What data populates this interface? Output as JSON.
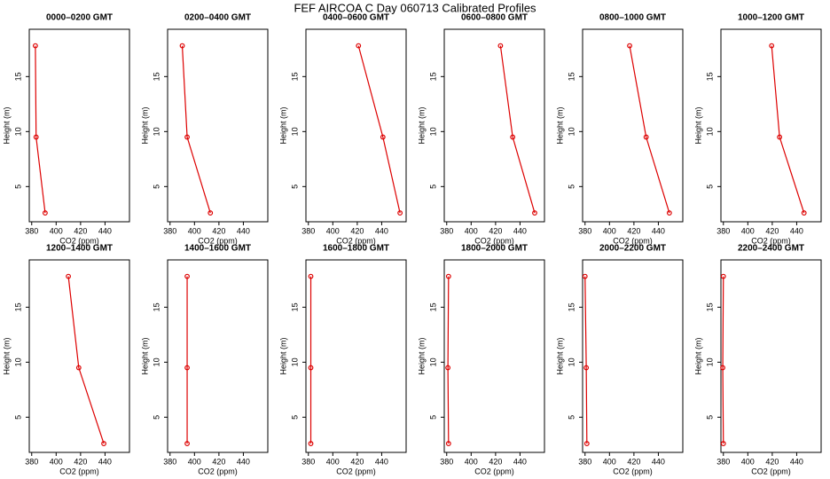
{
  "title": "FEF AIRCOA C  Day 060713  Calibrated Profiles",
  "chart_data": [
    {
      "type": "line",
      "title": "0000–0200 GMT",
      "x_label": "CO2 (ppm)",
      "y_label": "Height (m)",
      "xlim": [
        378,
        460
      ],
      "ylim": [
        1.8,
        19.3
      ],
      "xticks": [
        380,
        400,
        420,
        440
      ],
      "yticks": [
        5,
        10,
        15
      ],
      "series": [
        {
          "color": "#dd0000",
          "x": [
            391,
            383.6,
            383
          ],
          "y": [
            2.6,
            9.5,
            17.8
          ]
        }
      ]
    },
    {
      "type": "line",
      "title": "0200–0400 GMT",
      "x_label": "CO2 (ppm)",
      "y_label": "Height (m)",
      "xlim": [
        378,
        460
      ],
      "ylim": [
        1.8,
        19.3
      ],
      "xticks": [
        380,
        400,
        420,
        440
      ],
      "yticks": [
        5,
        10,
        15
      ],
      "series": [
        {
          "color": "#dd0000",
          "x": [
            413,
            394,
            390
          ],
          "y": [
            2.6,
            9.5,
            17.8
          ]
        }
      ]
    },
    {
      "type": "line",
      "title": "0400–0600 GMT",
      "x_label": "CO2 (ppm)",
      "y_label": "Height (m)",
      "xlim": [
        378,
        460
      ],
      "ylim": [
        1.8,
        19.3
      ],
      "xticks": [
        380,
        400,
        420,
        440
      ],
      "yticks": [
        5,
        10,
        15
      ],
      "series": [
        {
          "color": "#dd0000",
          "x": [
            455,
            441,
            421
          ],
          "y": [
            2.6,
            9.5,
            17.8
          ]
        }
      ]
    },
    {
      "type": "line",
      "title": "0600–0800 GMT",
      "x_label": "CO2 (ppm)",
      "y_label": "Height (m)",
      "xlim": [
        378,
        460
      ],
      "ylim": [
        1.8,
        19.3
      ],
      "xticks": [
        380,
        400,
        420,
        440
      ],
      "yticks": [
        5,
        10,
        15
      ],
      "series": [
        {
          "color": "#dd0000",
          "x": [
            452,
            434,
            424
          ],
          "y": [
            2.6,
            9.5,
            17.8
          ]
        }
      ]
    },
    {
      "type": "line",
      "title": "0800–1000 GMT",
      "x_label": "CO2 (ppm)",
      "y_label": "Height (m)",
      "xlim": [
        378,
        460
      ],
      "ylim": [
        1.8,
        19.3
      ],
      "xticks": [
        380,
        400,
        420,
        440
      ],
      "yticks": [
        5,
        10,
        15
      ],
      "series": [
        {
          "color": "#dd0000",
          "x": [
            449,
            430,
            416.5
          ],
          "y": [
            2.6,
            9.5,
            17.8
          ]
        }
      ]
    },
    {
      "type": "line",
      "title": "1000–1200 GMT",
      "x_label": "CO2 (ppm)",
      "y_label": "Height (m)",
      "xlim": [
        378,
        460
      ],
      "ylim": [
        1.8,
        19.3
      ],
      "xticks": [
        380,
        400,
        420,
        440
      ],
      "yticks": [
        5,
        10,
        15
      ],
      "series": [
        {
          "color": "#dd0000",
          "x": [
            446,
            426,
            419.5
          ],
          "y": [
            2.6,
            9.5,
            17.8
          ]
        }
      ]
    },
    {
      "type": "line",
      "title": "1200–1400 GMT",
      "x_label": "CO2 (ppm)",
      "y_label": "Height (m)",
      "xlim": [
        378,
        460
      ],
      "ylim": [
        1.8,
        19.3
      ],
      "xticks": [
        380,
        400,
        420,
        440
      ],
      "yticks": [
        5,
        10,
        15
      ],
      "series": [
        {
          "color": "#dd0000",
          "x": [
            439,
            418.5,
            410
          ],
          "y": [
            2.6,
            9.5,
            17.8
          ]
        }
      ]
    },
    {
      "type": "line",
      "title": "1400–1600 GMT",
      "x_label": "CO2 (ppm)",
      "y_label": "Height (m)",
      "xlim": [
        378,
        460
      ],
      "ylim": [
        1.8,
        19.3
      ],
      "xticks": [
        380,
        400,
        420,
        440
      ],
      "yticks": [
        5,
        10,
        15
      ],
      "series": [
        {
          "color": "#dd0000",
          "x": [
            394,
            394,
            394
          ],
          "y": [
            2.6,
            9.5,
            17.8
          ]
        }
      ]
    },
    {
      "type": "line",
      "title": "1600–1800 GMT",
      "x_label": "CO2 (ppm)",
      "y_label": "Height (m)",
      "xlim": [
        378,
        460
      ],
      "ylim": [
        1.8,
        19.3
      ],
      "xticks": [
        380,
        400,
        420,
        440
      ],
      "yticks": [
        5,
        10,
        15
      ],
      "series": [
        {
          "color": "#dd0000",
          "x": [
            382,
            382,
            382
          ],
          "y": [
            2.6,
            9.5,
            17.8
          ]
        }
      ]
    },
    {
      "type": "line",
      "title": "1800–2000 GMT",
      "x_label": "CO2 (ppm)",
      "y_label": "Height (m)",
      "xlim": [
        378,
        460
      ],
      "ylim": [
        1.8,
        19.3
      ],
      "xticks": [
        380,
        400,
        420,
        440
      ],
      "yticks": [
        5,
        10,
        15
      ],
      "series": [
        {
          "color": "#dd0000",
          "x": [
            381.5,
            381,
            381.5
          ],
          "y": [
            2.6,
            9.5,
            17.8
          ]
        }
      ]
    },
    {
      "type": "line",
      "title": "2000–2200 GMT",
      "x_label": "CO2 (ppm)",
      "y_label": "Height (m)",
      "xlim": [
        378,
        460
      ],
      "ylim": [
        1.8,
        19.3
      ],
      "xticks": [
        380,
        400,
        420,
        440
      ],
      "yticks": [
        5,
        10,
        15
      ],
      "series": [
        {
          "color": "#dd0000",
          "x": [
            381.5,
            381,
            380
          ],
          "y": [
            2.6,
            9.5,
            17.8
          ]
        }
      ]
    },
    {
      "type": "line",
      "title": "2200–2400 GMT",
      "x_label": "CO2 (ppm)",
      "y_label": "Height (m)",
      "xlim": [
        378,
        460
      ],
      "ylim": [
        1.8,
        19.3
      ],
      "xticks": [
        380,
        400,
        420,
        440
      ],
      "yticks": [
        5,
        10,
        15
      ],
      "series": [
        {
          "color": "#dd0000",
          "x": [
            380,
            379.5,
            380
          ],
          "y": [
            2.6,
            9.5,
            17.8
          ]
        }
      ]
    }
  ]
}
